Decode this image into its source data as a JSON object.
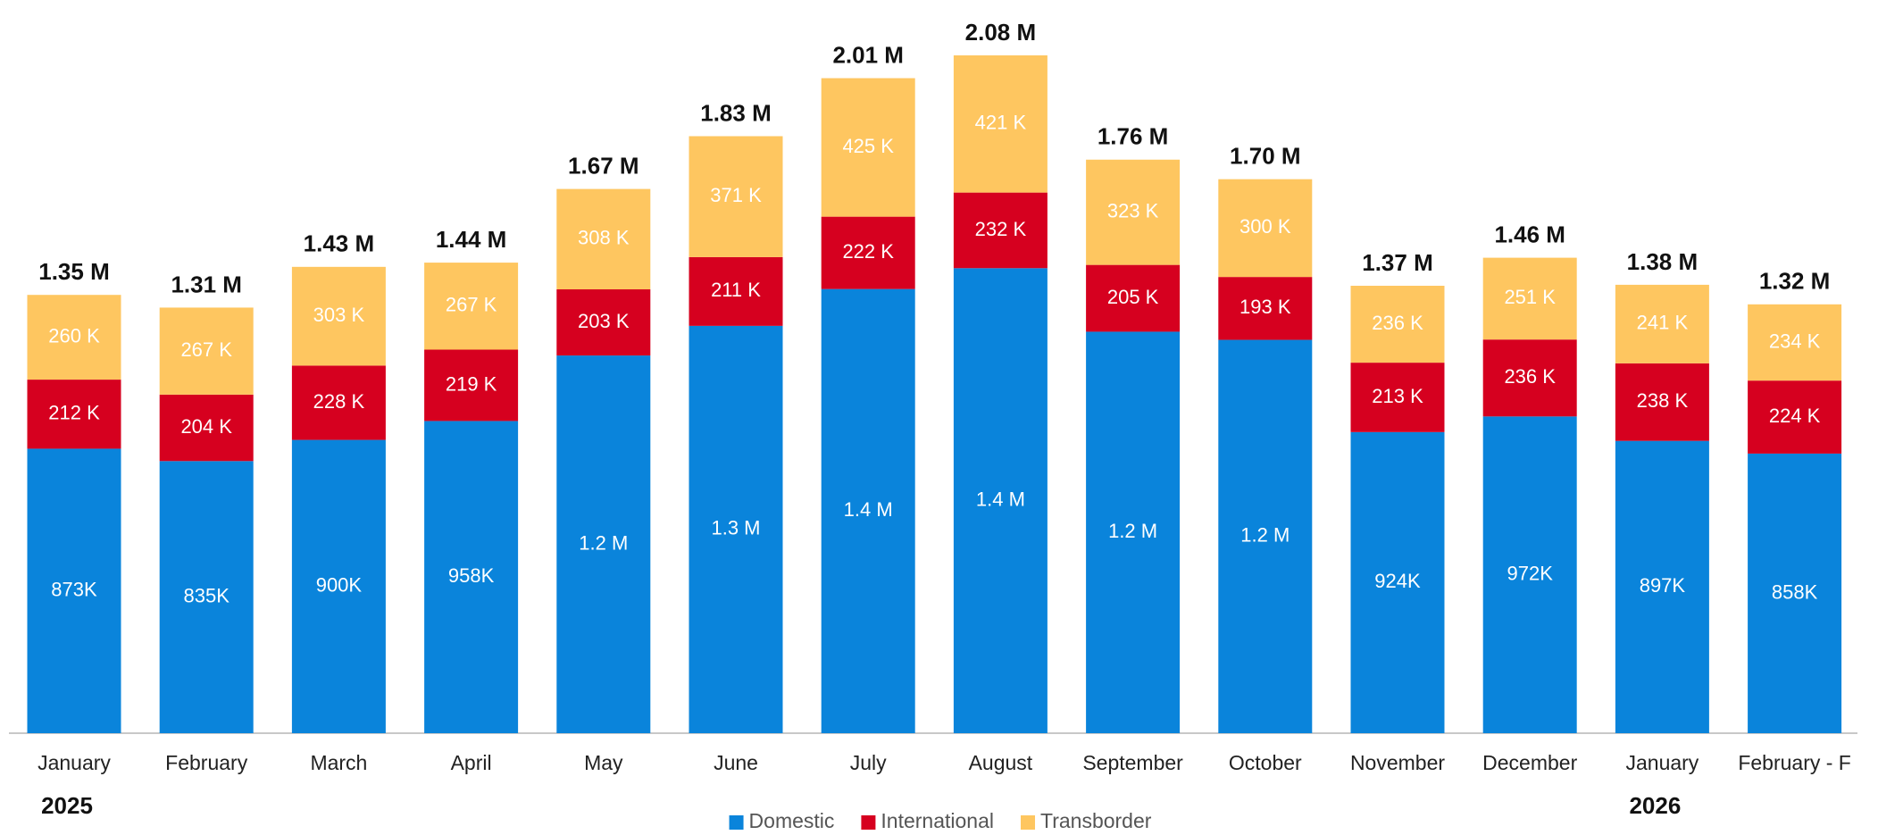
{
  "chart_data": {
    "type": "stacked_bar",
    "categories": [
      "January",
      "February",
      "March",
      "April",
      "May",
      "June",
      "July",
      "August",
      "September",
      "October",
      "November",
      "December",
      "January",
      "February - F"
    ],
    "groups": [
      {
        "label": "2025",
        "start": 0
      },
      {
        "label": "2026",
        "start": 12
      }
    ],
    "series": [
      {
        "name": "Domestic",
        "color": "#0a84db",
        "values": [
          873000,
          835000,
          900000,
          958000,
          1159000,
          1250000,
          1363000,
          1427000,
          1232000,
          1207000,
          924000,
          972000,
          897000,
          858000
        ],
        "value_labels": [
          "873K",
          "835K",
          "900K",
          "958K",
          "1.2 M",
          "1.3 M",
          "1.4 M",
          "1.4 M",
          "1.2 M",
          "1.2 M",
          "924K",
          "972K",
          "897K",
          "858K"
        ]
      },
      {
        "name": "International",
        "color": "#d6001f",
        "values": [
          212000,
          204000,
          228000,
          219000,
          203000,
          211000,
          222000,
          232000,
          205000,
          193000,
          213000,
          236000,
          238000,
          224000
        ],
        "value_labels": [
          "212 K",
          "204 K",
          "228 K",
          "219 K",
          "203 K",
          "211 K",
          "222 K",
          "232 K",
          "205 K",
          "193 K",
          "213 K",
          "236 K",
          "238 K",
          "224 K"
        ]
      },
      {
        "name": "Transborder",
        "color": "#fec660",
        "values": [
          260000,
          267000,
          303000,
          267000,
          308000,
          371000,
          425000,
          421000,
          323000,
          300000,
          236000,
          251000,
          241000,
          234000
        ],
        "value_labels": [
          "260 K",
          "267 K",
          "303 K",
          "267 K",
          "308 K",
          "371 K",
          "425 K",
          "421 K",
          "323 K",
          "300 K",
          "236 K",
          "251 K",
          "241 K",
          "234 K"
        ]
      }
    ],
    "total_labels": [
      "1.35 M",
      "1.31 M",
      "1.43 M",
      "1.44 M",
      "1.67 M",
      "1.83 M",
      "2.01 M",
      "2.08 M",
      "1.76 M",
      "1.70 M",
      "1.37 M",
      "1.46 M",
      "1.38 M",
      "1.32 M"
    ],
    "legend": "bottom"
  }
}
